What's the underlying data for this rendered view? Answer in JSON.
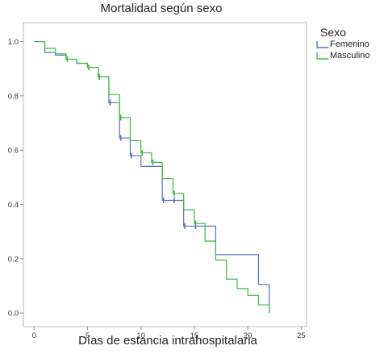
{
  "chart_data": {
    "type": "line",
    "step": true,
    "title": "Mortalidad según sexo",
    "xlabel": "Días de estancia intrahospitalaria",
    "ylabel": "",
    "xlim": [
      -1,
      25.5
    ],
    "ylim": [
      -0.05,
      1.07
    ],
    "xticks": [
      0,
      5,
      10,
      15,
      20,
      25
    ],
    "yticks": [
      "0.0",
      "0.2",
      "0.4",
      "0.6",
      "0.8",
      "1.0"
    ],
    "grid": false,
    "legend": {
      "title": "Sexo",
      "position": "top-right"
    },
    "series": [
      {
        "name": "Femenino",
        "color": "#5470c6",
        "x": [
          0,
          1,
          2,
          3,
          4,
          5,
          6,
          7,
          8,
          9,
          10,
          11,
          12,
          13,
          14,
          15,
          16,
          17,
          21,
          22
        ],
        "y": [
          1.0,
          0.96,
          0.95,
          0.935,
          0.92,
          0.905,
          0.87,
          0.775,
          0.645,
          0.58,
          0.54,
          0.54,
          0.415,
          0.415,
          0.32,
          0.32,
          0.32,
          0.215,
          0.105,
          0.0
        ],
        "censored_x": [
          6,
          7,
          8,
          9,
          12,
          13,
          14,
          15
        ],
        "censored_y": [
          0.87,
          0.775,
          0.645,
          0.58,
          0.415,
          0.415,
          0.32,
          0.32
        ]
      },
      {
        "name": "Masculino",
        "color": "#3dbb3d",
        "x": [
          0,
          1,
          2,
          3,
          4,
          5,
          6,
          7,
          8,
          9,
          10,
          11,
          12,
          13,
          14,
          15,
          16,
          17,
          18,
          19,
          20,
          21
        ],
        "y": [
          1.0,
          0.975,
          0.955,
          0.935,
          0.92,
          0.905,
          0.87,
          0.805,
          0.72,
          0.635,
          0.59,
          0.555,
          0.495,
          0.44,
          0.38,
          0.33,
          0.265,
          0.195,
          0.125,
          0.09,
          0.065,
          0.03
        ],
        "end_x": 22,
        "end_y": 0.005,
        "censored_x": [
          3,
          5,
          6,
          8,
          10,
          11,
          13,
          15
        ],
        "censored_y": [
          0.935,
          0.905,
          0.87,
          0.72,
          0.59,
          0.555,
          0.44,
          0.33
        ]
      }
    ]
  }
}
